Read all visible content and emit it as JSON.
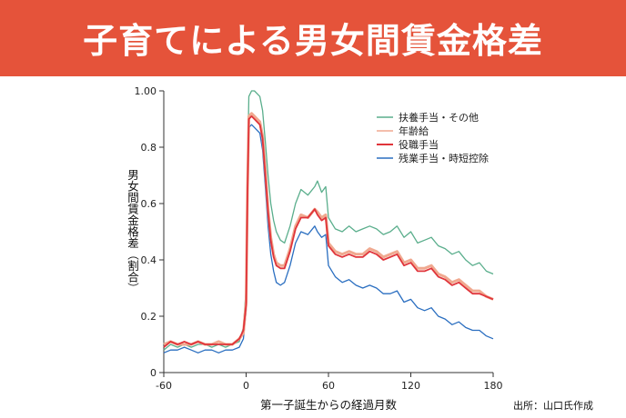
{
  "header": {
    "title": "子育てによる男女間賃金格差"
  },
  "source": "出所：山口氏作成",
  "chart_data": {
    "type": "line",
    "title": "",
    "xlabel": "第一子誕生からの経過月数",
    "ylabel": "男女間賃金格差（割合）",
    "xlim": [
      -60,
      180
    ],
    "ylim": [
      0,
      1.0
    ],
    "x_ticks": [
      -60,
      0,
      60,
      120,
      180
    ],
    "x_tick_labels": [
      "-60",
      "0",
      "60",
      "120",
      "180"
    ],
    "y_ticks": [
      0,
      0.2,
      0.4,
      0.6,
      0.8,
      1.0
    ],
    "y_tick_labels": [
      "0",
      "0.2",
      "0.4",
      "0.6",
      "0.8",
      "1.00"
    ],
    "grid": false,
    "legend_position": "top-right",
    "series": [
      {
        "name": "扶養手当・その他",
        "color": "#5aae8c",
        "x": [
          -60,
          -55,
          -50,
          -45,
          -40,
          -35,
          -30,
          -25,
          -20,
          -15,
          -10,
          -5,
          -2,
          0,
          1,
          2,
          4,
          6,
          8,
          10,
          12,
          14,
          16,
          18,
          20,
          22,
          25,
          28,
          32,
          36,
          40,
          45,
          50,
          52,
          55,
          58,
          60,
          65,
          70,
          75,
          80,
          85,
          90,
          95,
          100,
          105,
          110,
          115,
          120,
          125,
          130,
          135,
          140,
          145,
          150,
          155,
          160,
          165,
          170,
          175,
          180
        ],
        "values": [
          0.08,
          0.1,
          0.09,
          0.1,
          0.09,
          0.1,
          0.1,
          0.09,
          0.1,
          0.09,
          0.1,
          0.11,
          0.16,
          0.3,
          0.72,
          0.98,
          1.0,
          1.0,
          0.99,
          0.98,
          0.93,
          0.82,
          0.7,
          0.6,
          0.54,
          0.5,
          0.47,
          0.46,
          0.52,
          0.6,
          0.65,
          0.63,
          0.66,
          0.68,
          0.64,
          0.66,
          0.55,
          0.51,
          0.5,
          0.52,
          0.5,
          0.51,
          0.52,
          0.51,
          0.49,
          0.5,
          0.52,
          0.48,
          0.5,
          0.46,
          0.47,
          0.48,
          0.45,
          0.44,
          0.42,
          0.43,
          0.4,
          0.38,
          0.39,
          0.36,
          0.35
        ]
      },
      {
        "name": "年齢給",
        "color": "#f0a990",
        "x": [
          -60,
          -55,
          -50,
          -45,
          -40,
          -35,
          -30,
          -25,
          -20,
          -15,
          -10,
          -5,
          -2,
          0,
          1,
          2,
          4,
          6,
          8,
          10,
          12,
          14,
          16,
          18,
          20,
          22,
          25,
          28,
          32,
          36,
          40,
          45,
          50,
          52,
          55,
          58,
          60,
          65,
          70,
          75,
          80,
          85,
          90,
          95,
          100,
          105,
          110,
          115,
          120,
          125,
          130,
          135,
          140,
          145,
          150,
          155,
          160,
          165,
          170,
          175,
          180
        ],
        "values": [
          0.1,
          0.11,
          0.1,
          0.1,
          0.1,
          0.11,
          0.1,
          0.1,
          0.11,
          0.1,
          0.1,
          0.12,
          0.14,
          0.25,
          0.65,
          0.91,
          0.92,
          0.91,
          0.9,
          0.89,
          0.84,
          0.72,
          0.58,
          0.48,
          0.42,
          0.39,
          0.38,
          0.38,
          0.44,
          0.52,
          0.56,
          0.55,
          0.58,
          0.57,
          0.55,
          0.56,
          0.46,
          0.43,
          0.42,
          0.43,
          0.42,
          0.42,
          0.44,
          0.43,
          0.41,
          0.42,
          0.43,
          0.39,
          0.4,
          0.37,
          0.37,
          0.38,
          0.35,
          0.34,
          0.32,
          0.33,
          0.31,
          0.29,
          0.29,
          0.27,
          0.26
        ]
      },
      {
        "name": "役職手当",
        "color": "#e0343a",
        "x": [
          -60,
          -55,
          -50,
          -45,
          -40,
          -35,
          -30,
          -25,
          -20,
          -15,
          -10,
          -5,
          -2,
          0,
          1,
          2,
          4,
          6,
          8,
          10,
          12,
          14,
          16,
          18,
          20,
          22,
          25,
          28,
          32,
          36,
          40,
          45,
          50,
          52,
          55,
          58,
          60,
          65,
          70,
          75,
          80,
          85,
          90,
          95,
          100,
          105,
          110,
          115,
          120,
          125,
          130,
          135,
          140,
          145,
          150,
          155,
          160,
          165,
          170,
          175,
          180
        ],
        "values": [
          0.09,
          0.11,
          0.1,
          0.11,
          0.1,
          0.11,
          0.1,
          0.1,
          0.1,
          0.1,
          0.1,
          0.12,
          0.15,
          0.24,
          0.64,
          0.9,
          0.91,
          0.9,
          0.89,
          0.88,
          0.83,
          0.7,
          0.57,
          0.47,
          0.41,
          0.38,
          0.37,
          0.37,
          0.43,
          0.51,
          0.55,
          0.55,
          0.58,
          0.56,
          0.54,
          0.55,
          0.45,
          0.42,
          0.41,
          0.42,
          0.41,
          0.41,
          0.43,
          0.42,
          0.4,
          0.41,
          0.42,
          0.38,
          0.39,
          0.36,
          0.36,
          0.37,
          0.34,
          0.33,
          0.31,
          0.32,
          0.3,
          0.28,
          0.28,
          0.27,
          0.26
        ]
      },
      {
        "name": "残業手当・時短控除",
        "color": "#2a6ec0",
        "x": [
          -60,
          -55,
          -50,
          -45,
          -40,
          -35,
          -30,
          -25,
          -20,
          -15,
          -10,
          -5,
          -2,
          0,
          1,
          2,
          4,
          6,
          8,
          10,
          12,
          14,
          16,
          18,
          20,
          22,
          25,
          28,
          32,
          36,
          40,
          45,
          50,
          52,
          55,
          58,
          60,
          65,
          70,
          75,
          80,
          85,
          90,
          95,
          100,
          105,
          110,
          115,
          120,
          125,
          130,
          135,
          140,
          145,
          150,
          155,
          160,
          165,
          170,
          175,
          180
        ],
        "values": [
          0.07,
          0.08,
          0.08,
          0.09,
          0.08,
          0.07,
          0.08,
          0.08,
          0.07,
          0.08,
          0.08,
          0.09,
          0.12,
          0.22,
          0.62,
          0.87,
          0.88,
          0.87,
          0.86,
          0.85,
          0.79,
          0.66,
          0.52,
          0.42,
          0.36,
          0.32,
          0.31,
          0.32,
          0.38,
          0.46,
          0.5,
          0.49,
          0.52,
          0.5,
          0.48,
          0.49,
          0.38,
          0.34,
          0.32,
          0.33,
          0.31,
          0.3,
          0.31,
          0.3,
          0.28,
          0.28,
          0.29,
          0.25,
          0.26,
          0.23,
          0.22,
          0.23,
          0.2,
          0.19,
          0.17,
          0.18,
          0.16,
          0.15,
          0.15,
          0.13,
          0.12
        ]
      }
    ]
  }
}
